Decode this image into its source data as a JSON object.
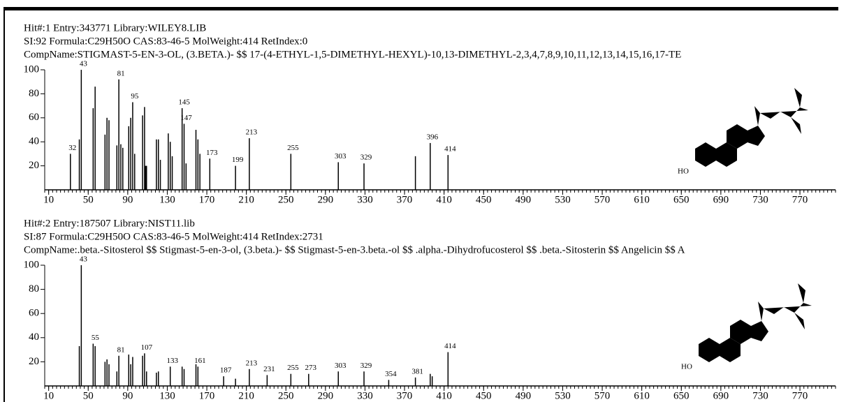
{
  "chart_data": [
    {
      "type": "mass-spectrum",
      "header": [
        "Hit#:1  Entry:343771  Library:WILEY8.LIB",
        "SI:92  Formula:C29H50O  CAS:83-46-5  MolWeight:414  RetIndex:0",
        "CompName:STIGMAST-5-EN-3-OL, (3.BETA.)- $$ 17-(4-ETHYL-1,5-DIMETHYL-HEXYL)-10,13-DIMETHYL-2,3,4,7,8,9,10,11,12,13,14,15,16,17-TE"
      ],
      "structure_label": "HO",
      "xlim": [
        6,
        806
      ],
      "ylim": [
        0,
        100
      ],
      "xticks": [
        10,
        50,
        90,
        130,
        170,
        210,
        250,
        290,
        330,
        370,
        410,
        450,
        490,
        530,
        570,
        610,
        650,
        690,
        730,
        770
      ],
      "yticks": [
        20,
        40,
        60,
        80,
        100
      ],
      "series": [
        {
          "color": "#000000",
          "show_labels": true,
          "x": [
            32,
            43,
            81,
            95,
            145,
            147,
            173,
            199,
            213,
            255,
            303,
            329,
            396,
            414
          ],
          "values": [
            30,
            100,
            92,
            73,
            68,
            55,
            26,
            20,
            43,
            30,
            23,
            22,
            39,
            29
          ]
        },
        {
          "color": "#000000",
          "show_labels": false,
          "x": [
            41,
            55,
            57,
            67,
            69,
            71,
            79,
            83,
            85,
            91,
            93,
            97,
            105,
            107,
            108,
            109,
            119,
            121,
            123,
            131,
            133,
            135,
            149,
            159,
            161,
            163,
            381
          ],
          "values": [
            42,
            68,
            86,
            46,
            60,
            58,
            37,
            38,
            35,
            53,
            60,
            30,
            62,
            69,
            20,
            20,
            42,
            42,
            25,
            47,
            40,
            28,
            22,
            50,
            42,
            30,
            28
          ]
        }
      ]
    },
    {
      "type": "mass-spectrum",
      "header": [
        "Hit#:2  Entry:187507  Library:NIST11.lib",
        "SI:87  Formula:C29H50O  CAS:83-46-5  MolWeight:414  RetIndex:2731",
        "CompName:.beta.-Sitosterol $$ Stigmast-5-en-3-ol, (3.beta.)- $$ Stigmast-5-en-3.beta.-ol $$ .alpha.-Dihydrofucosterol $$ .beta.-Sitosterin $$ Angelicin $$ A"
      ],
      "structure_label": "HO",
      "xlim": [
        6,
        806
      ],
      "ylim": [
        0,
        100
      ],
      "xticks": [
        10,
        50,
        90,
        130,
        170,
        210,
        250,
        290,
        330,
        370,
        410,
        450,
        490,
        530,
        570,
        610,
        650,
        690,
        730,
        770
      ],
      "yticks": [
        20,
        40,
        60,
        80,
        100
      ],
      "series": [
        {
          "color": "#000000",
          "show_labels": true,
          "x": [
            43,
            55,
            81,
            107,
            133,
            161,
            187,
            213,
            231,
            255,
            273,
            303,
            329,
            354,
            381,
            414
          ],
          "values": [
            100,
            35,
            25,
            27,
            16,
            16,
            8,
            14,
            9,
            10,
            10,
            12,
            12,
            5,
            7,
            28
          ]
        },
        {
          "color": "#000000",
          "show_labels": false,
          "x": [
            41,
            57,
            67,
            69,
            71,
            79,
            91,
            93,
            95,
            105,
            109,
            119,
            121,
            145,
            147,
            159,
            199,
            396,
            398
          ],
          "values": [
            33,
            33,
            20,
            22,
            18,
            12,
            26,
            18,
            24,
            25,
            12,
            11,
            12,
            16,
            14,
            18,
            6,
            10,
            8
          ]
        }
      ]
    }
  ]
}
